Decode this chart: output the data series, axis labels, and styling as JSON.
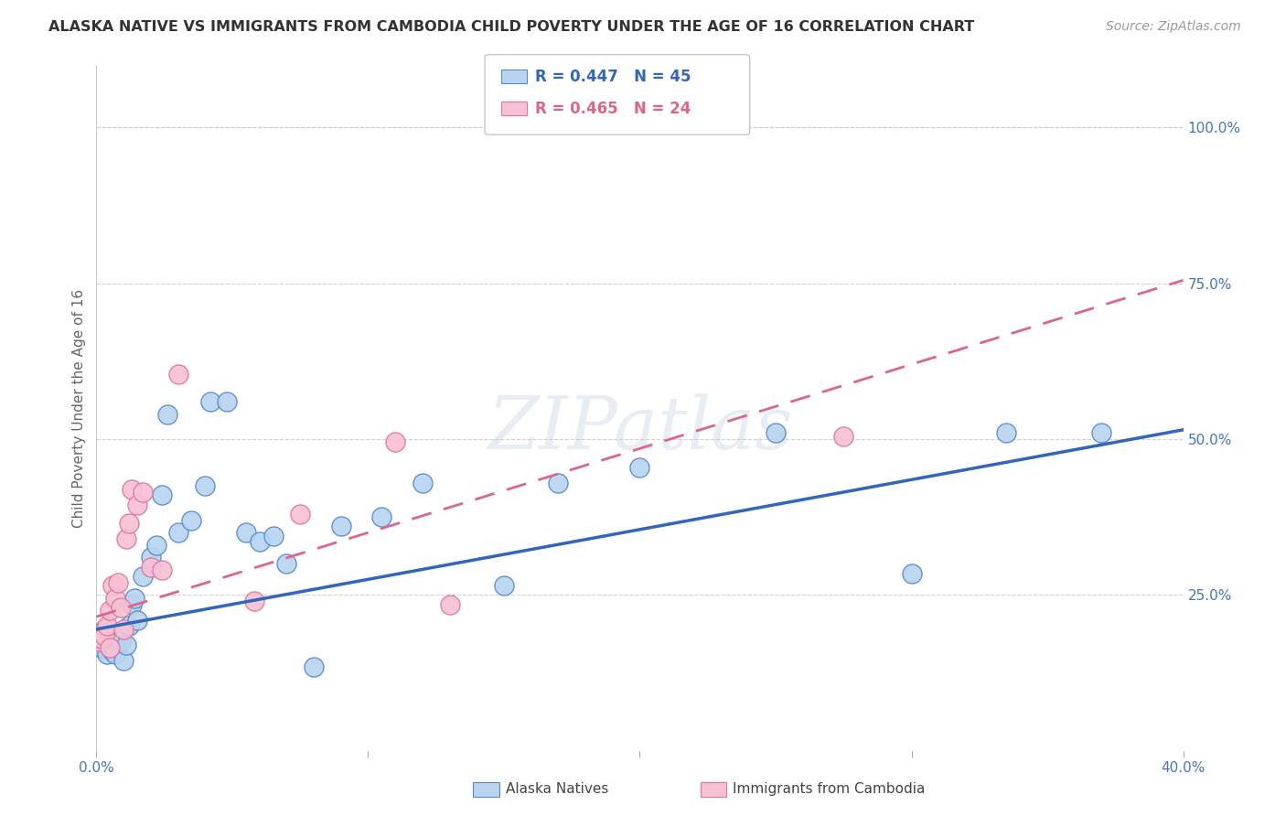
{
  "title": "ALASKA NATIVE VS IMMIGRANTS FROM CAMBODIA CHILD POVERTY UNDER THE AGE OF 16 CORRELATION CHART",
  "source": "Source: ZipAtlas.com",
  "ylabel": "Child Poverty Under the Age of 16",
  "xlim": [
    0.0,
    0.4
  ],
  "ylim": [
    0.0,
    1.1
  ],
  "yticks_right": [
    0.25,
    0.5,
    0.75,
    1.0
  ],
  "yticklabels_right": [
    "25.0%",
    "50.0%",
    "75.0%",
    "100.0%"
  ],
  "legend_label1": "Alaska Natives",
  "legend_label2": "Immigrants from Cambodia",
  "blue_fill": "#B8D4F0",
  "pink_fill": "#F8C0D4",
  "blue_edge": "#5588CC",
  "pink_edge": "#DD7799",
  "blue_line": "#3366BB",
  "pink_line": "#DD6688",
  "R_blue_text": "R = 0.447",
  "N_blue_text": "N = 45",
  "R_pink_text": "R = 0.465",
  "N_pink_text": "N = 24",
  "alaska_x": [
    0.001,
    0.002,
    0.002,
    0.003,
    0.003,
    0.004,
    0.004,
    0.005,
    0.005,
    0.006,
    0.007,
    0.007,
    0.008,
    0.009,
    0.01,
    0.011,
    0.012,
    0.013,
    0.014,
    0.015,
    0.017,
    0.02,
    0.022,
    0.024,
    0.026,
    0.03,
    0.035,
    0.04,
    0.042,
    0.048,
    0.055,
    0.06,
    0.065,
    0.07,
    0.08,
    0.09,
    0.105,
    0.12,
    0.15,
    0.17,
    0.2,
    0.25,
    0.3,
    0.335,
    0.37
  ],
  "alaska_y": [
    0.175,
    0.165,
    0.185,
    0.195,
    0.175,
    0.175,
    0.155,
    0.165,
    0.185,
    0.16,
    0.175,
    0.155,
    0.19,
    0.175,
    0.145,
    0.17,
    0.2,
    0.235,
    0.245,
    0.21,
    0.28,
    0.31,
    0.33,
    0.41,
    0.54,
    0.35,
    0.37,
    0.425,
    0.56,
    0.56,
    0.35,
    0.335,
    0.345,
    0.3,
    0.135,
    0.36,
    0.375,
    0.43,
    0.265,
    0.43,
    0.455,
    0.51,
    0.285,
    0.51,
    0.51
  ],
  "cambodia_x": [
    0.001,
    0.002,
    0.003,
    0.004,
    0.005,
    0.005,
    0.006,
    0.007,
    0.008,
    0.009,
    0.01,
    0.011,
    0.012,
    0.013,
    0.015,
    0.017,
    0.02,
    0.024,
    0.03,
    0.058,
    0.075,
    0.11,
    0.13,
    0.275
  ],
  "cambodia_y": [
    0.175,
    0.18,
    0.185,
    0.2,
    0.225,
    0.165,
    0.265,
    0.245,
    0.27,
    0.23,
    0.195,
    0.34,
    0.365,
    0.42,
    0.395,
    0.415,
    0.295,
    0.29,
    0.605,
    0.24,
    0.38,
    0.495,
    0.235,
    0.505
  ],
  "blue_intercept": 0.195,
  "blue_slope": 0.8,
  "pink_intercept": 0.215,
  "pink_slope": 1.35,
  "watermark": "ZIPatlas",
  "background_color": "#FFFFFF",
  "grid_color": "#CCCCCC"
}
